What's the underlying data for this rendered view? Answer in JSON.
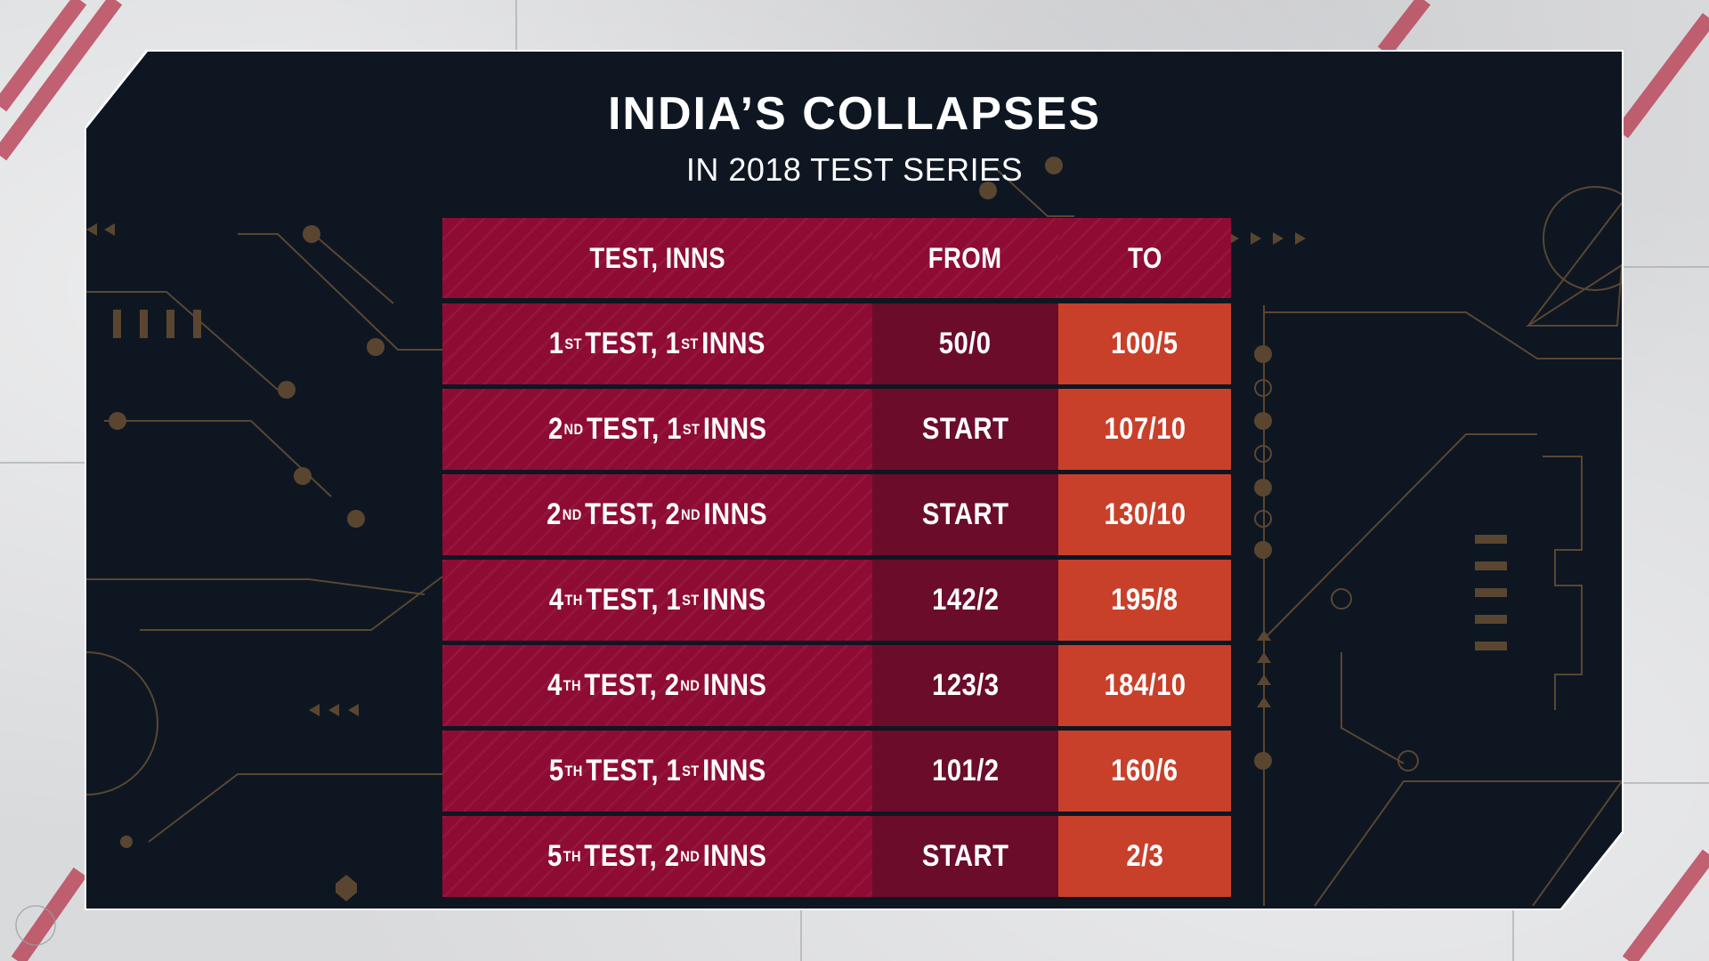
{
  "title": "INDIA’S COLLAPSES",
  "subtitle": "IN 2018 TEST SERIES",
  "table": {
    "headers": {
      "test_inns": "TEST, INNS",
      "from": "FROM",
      "to": "TO"
    },
    "rows": [
      {
        "test_num": "1",
        "test_suf": "ST",
        "test_word": "TEST,",
        "inns_num": "1",
        "inns_suf": "ST",
        "inns_word": "INNS",
        "from": "50/0",
        "to": "100/5"
      },
      {
        "test_num": "2",
        "test_suf": "ND",
        "test_word": "TEST,",
        "inns_num": "1",
        "inns_suf": "ST",
        "inns_word": "INNS",
        "from": "START",
        "to": "107/10"
      },
      {
        "test_num": "2",
        "test_suf": "ND",
        "test_word": "TEST,",
        "inns_num": "2",
        "inns_suf": "ND",
        "inns_word": "INNS",
        "from": "START",
        "to": "130/10"
      },
      {
        "test_num": "4",
        "test_suf": "TH",
        "test_word": "TEST,",
        "inns_num": "1",
        "inns_suf": "ST",
        "inns_word": "INNS",
        "from": "142/2",
        "to": "195/8"
      },
      {
        "test_num": "4",
        "test_suf": "TH",
        "test_word": "TEST,",
        "inns_num": "2",
        "inns_suf": "ND",
        "inns_word": "INNS",
        "from": "123/3",
        "to": "184/10"
      },
      {
        "test_num": "5",
        "test_suf": "TH",
        "test_word": "TEST,",
        "inns_num": "1",
        "inns_suf": "ST",
        "inns_word": "INNS",
        "from": "101/2",
        "to": "160/6"
      },
      {
        "test_num": "5",
        "test_suf": "TH",
        "test_word": "TEST,",
        "inns_num": "2",
        "inns_suf": "ND",
        "inns_word": "INNS",
        "from": "START",
        "to": "2/3"
      }
    ]
  },
  "colors": {
    "panel": "#0e1622",
    "header_row": "#8e0b33",
    "col_test": "#8e0b33",
    "col_from": "#6b0c2b",
    "col_to": "#c8402a",
    "circuit": "#6b4f31",
    "stripe": "#b84055"
  }
}
